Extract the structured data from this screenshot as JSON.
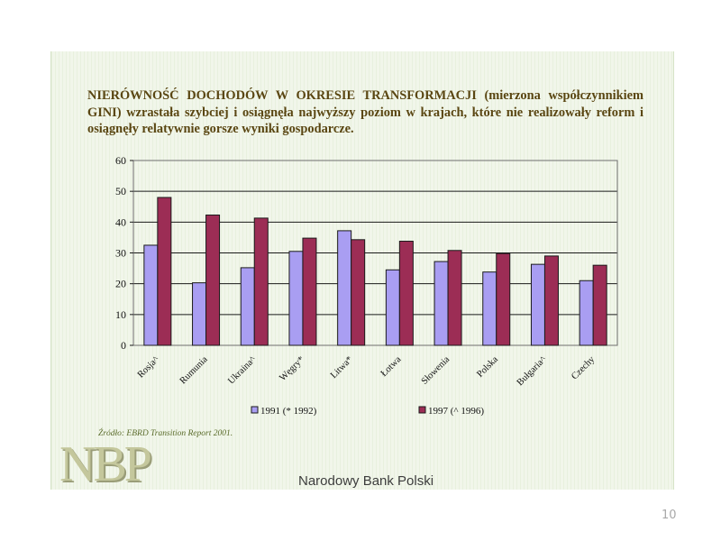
{
  "slide": {
    "heading": "NIERÓWNOŚĆ DOCHODÓW W OKRESIE TRANSFORMACJI (mierzona współczynnikiem GINI) wzrastała szybciej i osiągnęła najwyższy poziom w krajach, które nie realizowały reform i osiągnęły relatywnie gorsze wyniki gospodarcze.",
    "source": "Źródło: EBRD Transition Report 2001.",
    "logo_text": "NBP",
    "bank_name": "Narodowy Bank Polski",
    "page_number": "10"
  },
  "colors": {
    "series1": "#a99ef2",
    "series2": "#9c2d55",
    "heading": "#5a4612",
    "logo": "#c4c79c"
  },
  "chart_data": {
    "type": "bar",
    "title": "",
    "xlabel": "",
    "ylabel": "",
    "ylim": [
      0,
      60
    ],
    "yticks": [
      0,
      10,
      20,
      30,
      40,
      50,
      60
    ],
    "grid": true,
    "legend_position": "bottom",
    "categories": [
      "Rosja^",
      "Rumunia",
      "Ukraina^",
      "Węgry*",
      "Litwa*",
      "Łotwa",
      "Słowenia",
      "Polska",
      "Bułgaria^",
      "Czechy"
    ],
    "series": [
      {
        "name": "1991 (* 1992)",
        "values": [
          32.5,
          20.3,
          25.2,
          30.5,
          37.2,
          24.5,
          27.2,
          23.8,
          26.3,
          21.0
        ]
      },
      {
        "name": "1997 (^ 1996)",
        "values": [
          48.0,
          42.3,
          41.3,
          34.8,
          34.3,
          33.8,
          30.8,
          29.8,
          29.0,
          26.0
        ]
      }
    ]
  }
}
